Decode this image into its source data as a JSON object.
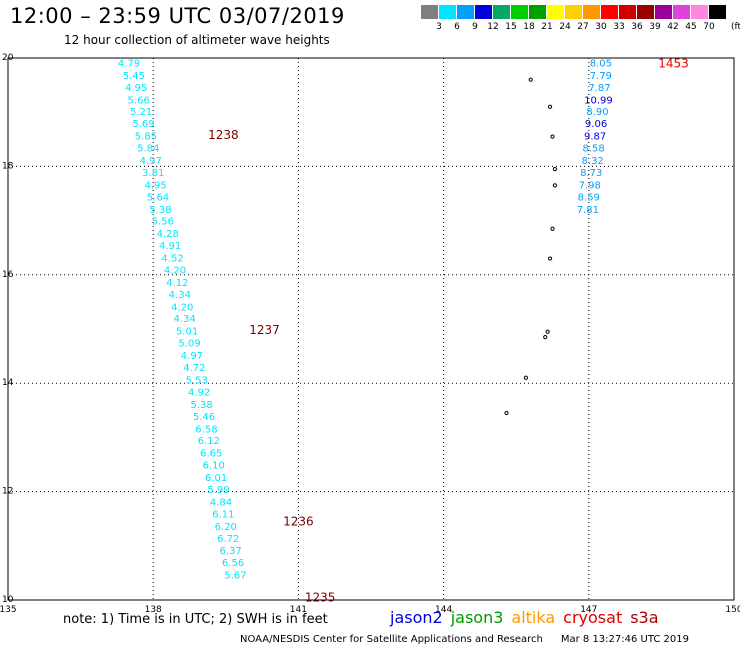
{
  "header": {
    "title": "12:00 – 23:59 UTC 03/07/2019",
    "subtitle": "12 hour collection of altimeter wave heights"
  },
  "legend": {
    "unit": "(ft)",
    "labels": [
      "3",
      "6",
      "9",
      "12",
      "15",
      "18",
      "21",
      "24",
      "27",
      "30",
      "33",
      "36",
      "39",
      "42",
      "45",
      "70"
    ],
    "colors": [
      "#7f7f7f",
      "#00e5ff",
      "#00a0ff",
      "#0000dd",
      "#00aa66",
      "#00cc00",
      "#00a000",
      "#ffff00",
      "#ffd000",
      "#ff9900",
      "#ff0000",
      "#cc0000",
      "#990000",
      "#990099",
      "#dd44dd",
      "#ff88dd",
      "#000000"
    ]
  },
  "map": {
    "lon_ticks": [
      "135",
      "138",
      "141",
      "144",
      "147",
      "150"
    ],
    "lat_ticks": [
      "20",
      "18",
      "16",
      "14",
      "12",
      "10"
    ]
  },
  "chart_data": {
    "type": "scatter",
    "xlim": [
      135,
      150
    ],
    "ylim": [
      10,
      20
    ],
    "track_west": {
      "color": "#00e5ff",
      "values": [
        "4.79",
        "5.45",
        "4.95",
        "5.66",
        "5.21",
        "5.69",
        "5.85",
        "5.84",
        "4.97",
        "3.81",
        "4.95",
        "5.64",
        "5.38",
        "5.56",
        "4.28",
        "4.91",
        "4.52",
        "4.20",
        "4.12",
        "4.34",
        "4.20",
        "4.34",
        "5.01",
        "5.09",
        "4.97",
        "4.72",
        "5.53",
        "4.92",
        "5.38",
        "5.46",
        "6.58",
        "6.12",
        "6.65",
        "6.10",
        "6.01",
        "5.99",
        "4.84",
        "6.11",
        "6.20",
        "6.72",
        "6.37",
        "6.56",
        "5.67"
      ],
      "lon": [
        137.5,
        137.6,
        137.65,
        137.7,
        137.75,
        137.8,
        137.85,
        137.9,
        137.95,
        138.0,
        138.05,
        138.1,
        138.15,
        138.2,
        138.3,
        138.35,
        138.4,
        138.45,
        138.5,
        138.55,
        138.6,
        138.65,
        138.7,
        138.75,
        138.8,
        138.85,
        138.9,
        138.95,
        139.0,
        139.05,
        139.1,
        139.15,
        139.2,
        139.25,
        139.3,
        139.35,
        139.4,
        139.45,
        139.5,
        139.55,
        139.6,
        139.65,
        139.7
      ],
      "lat": [
        19.9,
        19.67,
        19.45,
        19.22,
        19.0,
        18.78,
        18.55,
        18.33,
        18.1,
        17.88,
        17.65,
        17.43,
        17.2,
        16.98,
        16.75,
        16.53,
        16.3,
        16.08,
        15.85,
        15.63,
        15.4,
        15.18,
        14.95,
        14.73,
        14.5,
        14.28,
        14.05,
        13.83,
        13.6,
        13.38,
        13.15,
        12.93,
        12.7,
        12.48,
        12.25,
        12.03,
        11.8,
        11.58,
        11.35,
        11.13,
        10.9,
        10.68,
        10.45
      ]
    },
    "track_east": {
      "values": [
        "8.05",
        "7.79",
        "7.87",
        "10.99",
        "8.90",
        "9.06",
        "9.87",
        "8.58",
        "8.32",
        "8.73",
        "7.98",
        "8.59",
        "7.81"
      ],
      "colors": [
        "#00a0ff",
        "#00a0ff",
        "#00a0ff",
        "#0000dd",
        "#00a0ff",
        "#0000dd",
        "#0000dd",
        "#00a0ff",
        "#00a0ff",
        "#00a0ff",
        "#00a0ff",
        "#00a0ff",
        "#00a0ff"
      ],
      "lon": [
        147.25,
        147.25,
        147.22,
        147.2,
        147.18,
        147.15,
        147.13,
        147.1,
        147.08,
        147.05,
        147.02,
        147.0,
        146.98
      ],
      "lat": [
        19.9,
        19.67,
        19.45,
        19.22,
        19.0,
        18.78,
        18.55,
        18.33,
        18.1,
        17.88,
        17.65,
        17.43,
        17.2
      ]
    },
    "time_labels": [
      {
        "text": "1238",
        "lon": 139.45,
        "lat": 18.58,
        "color": "#7a0000"
      },
      {
        "text": "1237",
        "lon": 140.3,
        "lat": 14.98,
        "color": "#7a0000"
      },
      {
        "text": "1236",
        "lon": 141.0,
        "lat": 11.45,
        "color": "#7a0000"
      },
      {
        "text": "1235",
        "lon": 141.45,
        "lat": 10.05,
        "color": "#7a0000"
      },
      {
        "text": "1453",
        "lon": 148.75,
        "lat": 19.9,
        "color": "#ee0000"
      }
    ],
    "islands": [
      {
        "lon": 145.8,
        "lat": 19.6
      },
      {
        "lon": 146.2,
        "lat": 19.1
      },
      {
        "lon": 146.25,
        "lat": 18.55
      },
      {
        "lon": 146.3,
        "lat": 17.95
      },
      {
        "lon": 146.3,
        "lat": 17.65
      },
      {
        "lon": 146.25,
        "lat": 16.85
      },
      {
        "lon": 146.2,
        "lat": 16.3
      },
      {
        "lon": 146.15,
        "lat": 14.95
      },
      {
        "lon": 146.1,
        "lat": 14.85
      },
      {
        "lon": 145.7,
        "lat": 14.1
      },
      {
        "lon": 145.3,
        "lat": 13.45
      }
    ]
  },
  "footer": {
    "note": "note:  1) Time is in UTC;  2) SWH is in feet",
    "satellites": [
      {
        "name": "jason2",
        "color": "#0000dd"
      },
      {
        "name": "jason3",
        "color": "#009900"
      },
      {
        "name": "altika",
        "color": "#ff9900"
      },
      {
        "name": "cryosat",
        "color": "#dd0000"
      },
      {
        "name": "s3a",
        "color": "#aa0000"
      }
    ],
    "credit": "NOAA/NESDIS Center for Satellite Applications and Research",
    "timestamp": "Mar  8 13:27:46 UTC 2019"
  }
}
